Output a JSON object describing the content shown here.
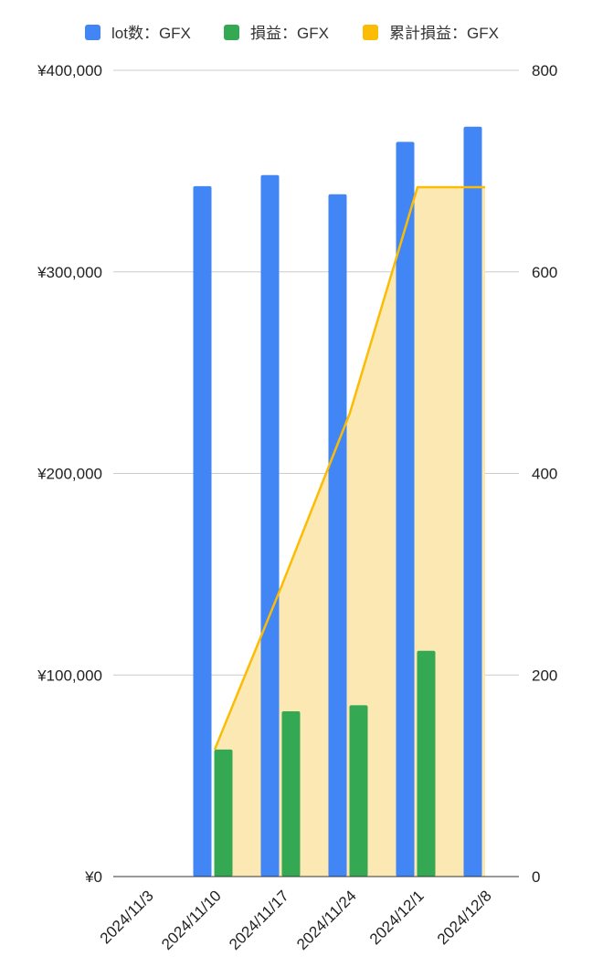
{
  "chart_data": {
    "type": "bar",
    "categories": [
      "2024/11/3",
      "2024/11/10",
      "2024/11/17",
      "2024/11/24",
      "2024/12/1",
      "2024/12/8"
    ],
    "series": [
      {
        "name": "lot数：GFX",
        "type": "bar",
        "axis": "right",
        "color": "#4285f4",
        "values": [
          0,
          685,
          696,
          677,
          729,
          744
        ]
      },
      {
        "name": "損益：GFX",
        "type": "bar",
        "axis": "left",
        "color": "#34a853",
        "values": [
          0,
          63000,
          82000,
          85000,
          112000,
          0
        ]
      },
      {
        "name": "累計損益：GFX",
        "type": "area",
        "axis": "left",
        "color": "#fbbc04",
        "fill": "#fce8b2",
        "values": [
          null,
          63000,
          145000,
          230000,
          342000,
          342000
        ]
      }
    ],
    "left_axis": {
      "ylim": [
        0,
        400000
      ],
      "ticks": [
        "¥0",
        "¥100,000",
        "¥200,000",
        "¥300,000",
        "¥400,000"
      ]
    },
    "right_axis": {
      "ylim": [
        0,
        800
      ],
      "ticks": [
        "0",
        "200",
        "400",
        "600",
        "800"
      ]
    },
    "grid": true,
    "legend": "top"
  }
}
